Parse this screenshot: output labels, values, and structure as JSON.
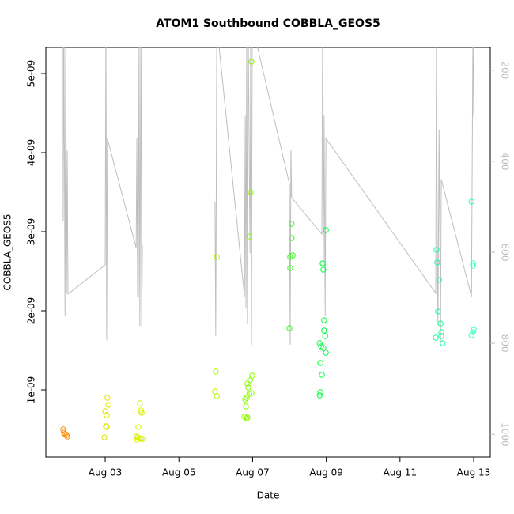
{
  "chart_data": {
    "type": "scatter",
    "title": "ATOM1 Southbound COBBLA_GEOS5",
    "x_label": "Date",
    "y_label": "COBBLA_GEOS5",
    "xlim": [
      1.39,
      13.45
    ],
    "xticks": [
      {
        "value": 3,
        "label": "Aug 03"
      },
      {
        "value": 5,
        "label": "Aug 05"
      },
      {
        "value": 7,
        "label": "Aug 07"
      },
      {
        "value": 9,
        "label": "Aug 09"
      },
      {
        "value": 11,
        "label": "Aug 11"
      },
      {
        "value": 13,
        "label": "Aug 13"
      }
    ],
    "ylim": [
      1.5e-10,
      5.33e-09
    ],
    "yticks": [
      {
        "value": 1e-09,
        "label": "1e-09"
      },
      {
        "value": 2e-09,
        "label": "2e-09"
      },
      {
        "value": 3e-09,
        "label": "3e-09"
      },
      {
        "value": 4e-09,
        "label": "4e-09"
      },
      {
        "value": 5e-09,
        "label": "5e-09"
      }
    ],
    "y2lim": [
      1050,
      150
    ],
    "y2ticks": [
      200,
      400,
      600,
      800,
      1000
    ],
    "series": [
      {
        "color": "#ff8c00",
        "x": [
          1.86,
          1.88,
          1.91,
          1.95,
          1.97
        ],
        "values": [
          5e-10,
          4.6e-10,
          4.4e-10,
          4.3e-10,
          4.1e-10
        ]
      },
      {
        "color": "#e0e000",
        "x": [
          3.06,
          3.09,
          3.0,
          3.04,
          3.02,
          3.04,
          2.98
        ],
        "values": [
          9e-10,
          8.1e-10,
          7.3e-10,
          6.8e-10,
          5.4e-10,
          5.3e-10,
          4e-10
        ]
      },
      {
        "color": "#d8ef00",
        "x": [
          3.94,
          3.97,
          3.99,
          3.9,
          3.84,
          3.88,
          3.92,
          3.97,
          3.86,
          4.01
        ],
        "values": [
          8.3e-10,
          7.4e-10,
          7.1e-10,
          5.3e-10,
          4.1e-10,
          4e-10,
          3.9e-10,
          3.8e-10,
          3.7e-10,
          3.8e-10
        ]
      },
      {
        "color": "#b0f500",
        "x": [
          6.03,
          6.0,
          5.98,
          6.03
        ],
        "values": [
          2.68e-09,
          1.23e-09,
          9.8e-10,
          9.2e-10
        ]
      },
      {
        "color": "#8cfa00",
        "x": [
          6.97,
          6.95,
          6.91,
          6.99,
          6.93,
          6.86,
          6.88,
          6.97,
          6.91,
          6.84,
          6.8,
          6.82,
          6.78,
          6.86,
          6.84
        ],
        "values": [
          5.15e-09,
          3.5e-09,
          2.94e-09,
          1.18e-09,
          1.12e-09,
          1.08e-09,
          1.03e-09,
          9.6e-10,
          9.5e-10,
          9e-10,
          8.8e-10,
          7.9e-10,
          6.6e-10,
          6.5e-10,
          6.4e-10
        ]
      },
      {
        "color": "#33ff1a",
        "x": [
          8.06,
          8.06,
          8.09,
          8.02,
          8.02,
          8.0
        ],
        "values": [
          3.1e-09,
          2.92e-09,
          2.7e-09,
          2.68e-09,
          2.54e-09,
          1.78e-09
        ]
      },
      {
        "color": "#00ff40",
        "x": [
          8.99,
          8.9,
          8.92,
          8.94,
          8.94,
          8.97,
          8.82,
          8.86,
          8.92,
          8.99,
          8.84,
          8.88,
          8.84,
          8.82
        ],
        "values": [
          3.02e-09,
          2.6e-09,
          2.52e-09,
          1.88e-09,
          1.75e-09,
          1.68e-09,
          1.59e-09,
          1.55e-09,
          1.53e-09,
          1.47e-09,
          1.34e-09,
          1.19e-09,
          9.7e-10,
          9.3e-10
        ]
      },
      {
        "color": "#1affa0",
        "x": [
          11.99,
          12.01,
          12.06,
          12.03,
          12.1,
          12.12,
          12.12,
          11.97,
          12.16
        ],
        "values": [
          2.77e-09,
          2.61e-09,
          2.39e-09,
          1.99e-09,
          1.84e-09,
          1.73e-09,
          1.68e-09,
          1.66e-09,
          1.59e-09
        ]
      },
      {
        "color": "#33ffc0",
        "x": [
          12.94,
          12.98,
          12.98,
          13.0,
          12.98,
          12.94
        ],
        "values": [
          3.38e-09,
          2.6e-09,
          2.57e-09,
          1.76e-09,
          1.73e-09,
          1.69e-09
        ]
      }
    ],
    "line_series": {
      "color": "#bebebe",
      "axis": "y2",
      "x": [
        1.86,
        1.86,
        1.88,
        1.91,
        1.93,
        1.95,
        1.97,
        1.99,
        3.0,
        3.02,
        3.04,
        3.06,
        3.84,
        3.86,
        3.88,
        3.9,
        3.92,
        3.94,
        3.97,
        3.99,
        4.01,
        null,
        5.98,
        6.0,
        6.03,
        6.78,
        6.8,
        6.82,
        6.84,
        6.86,
        6.88,
        6.93,
        6.95,
        6.97,
        6.99,
        8.0,
        8.02,
        8.04,
        8.06,
        8.88,
        8.9,
        8.92,
        8.94,
        8.97,
        8.99,
        11.97,
        11.99,
        12.01,
        12.03,
        12.06,
        12.1,
        12.12,
        12.94,
        12.98,
        13.0
      ],
      "values": [
        100,
        532,
        100,
        741,
        100,
        689,
        376,
        692,
        628,
        100,
        793,
        350,
        590,
        350,
        697,
        697,
        100,
        762,
        100,
        762,
        584,
        null,
        489,
        784,
        100,
        697,
        300,
        723,
        100,
        758,
        100,
        602,
        100,
        803,
        100,
        450,
        803,
        376,
        480,
        560,
        100,
        620,
        300,
        740,
        350,
        690,
        100,
        560,
        760,
        330,
        800,
        440,
        697,
        100,
        300
      ]
    }
  }
}
